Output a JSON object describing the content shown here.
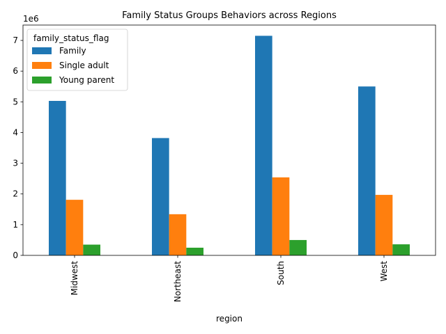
{
  "chart_data": {
    "type": "bar",
    "title": "Family Status Groups Behaviors across Regions",
    "xlabel": "region",
    "ylabel": "",
    "y_offset_label": "1e6",
    "categories": [
      "Midwest",
      "Northeast",
      "South",
      "West"
    ],
    "series": [
      {
        "name": "Family",
        "color": "#1f77b4",
        "values": [
          5030000,
          3820000,
          7150000,
          5500000
        ]
      },
      {
        "name": "Single adult",
        "color": "#ff7f0e",
        "values": [
          1810000,
          1340000,
          2540000,
          1970000
        ]
      },
      {
        "name": "Young parent",
        "color": "#2ca02c",
        "values": [
          350000,
          250000,
          500000,
          360000
        ]
      }
    ],
    "ylim": [
      0,
      7500000
    ],
    "yticks": [
      0,
      1000000,
      2000000,
      3000000,
      4000000,
      5000000,
      6000000,
      7000000
    ],
    "ytick_labels": [
      "0",
      "1",
      "2",
      "3",
      "4",
      "5",
      "6",
      "7"
    ],
    "legend": {
      "title": "family_status_flag",
      "placement": "top-left"
    },
    "grid": false
  }
}
